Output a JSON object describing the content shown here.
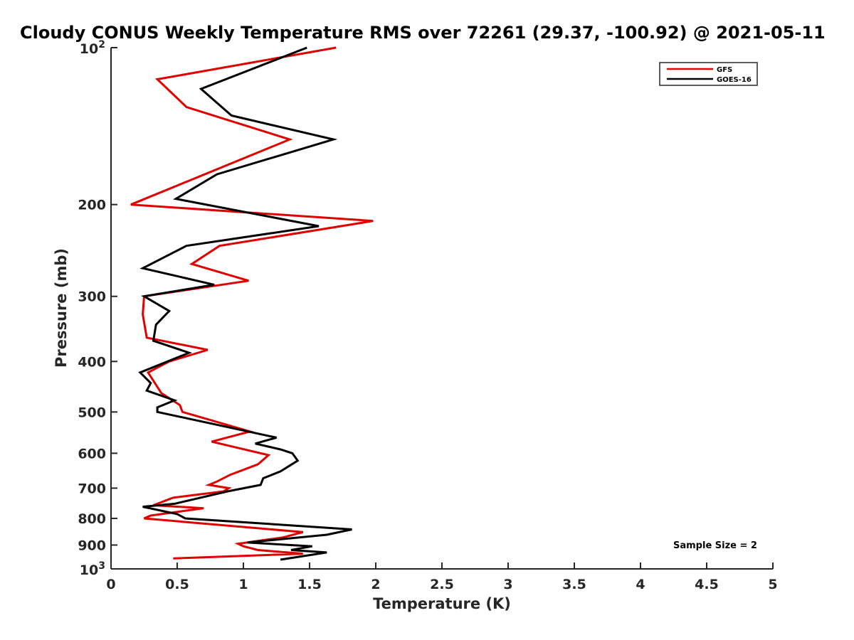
{
  "chart_data": {
    "type": "line",
    "title": "Cloudy CONUS Weekly Temperature RMS over 72261 (29.37, -100.92) @ 2021-05-11",
    "xlabel": "Temperature (K)",
    "ylabel": "Pressure (mb)",
    "xlim": [
      0,
      5
    ],
    "ylim": [
      100,
      1000
    ],
    "y_scale": "log",
    "y_reversed": true,
    "x_ticks": [
      "0",
      "0.5",
      "1",
      "1.5",
      "2",
      "2.5",
      "3",
      "3.5",
      "4",
      "4.5",
      "5"
    ],
    "y_ticks": [
      {
        "value": 100,
        "base": "10",
        "exp": "2"
      },
      {
        "value": 200,
        "label": "200"
      },
      {
        "value": 300,
        "label": "300"
      },
      {
        "value": 400,
        "label": "400"
      },
      {
        "value": 500,
        "label": "500"
      },
      {
        "value": 600,
        "label": "600"
      },
      {
        "value": 700,
        "label": "700"
      },
      {
        "value": 800,
        "label": "800"
      },
      {
        "value": 900,
        "label": "900"
      },
      {
        "value": 1000,
        "base": "10",
        "exp": "3"
      }
    ],
    "grid": false,
    "legend_position": "top-right",
    "annotation": "Sample Size = 2",
    "series": [
      {
        "name": "GFS",
        "color": "#e00000",
        "points": [
          [
            1.7,
            100
          ],
          [
            0.35,
            115
          ],
          [
            0.57,
            130
          ],
          [
            1.35,
            150
          ],
          [
            0.15,
            200
          ],
          [
            1.98,
            215
          ],
          [
            0.82,
            240
          ],
          [
            0.61,
            260
          ],
          [
            1.04,
            280
          ],
          [
            0.25,
            300
          ],
          [
            0.24,
            325
          ],
          [
            0.27,
            360
          ],
          [
            0.73,
            380
          ],
          [
            0.44,
            400
          ],
          [
            0.28,
            420
          ],
          [
            0.38,
            460
          ],
          [
            0.52,
            485
          ],
          [
            0.54,
            500
          ],
          [
            1.05,
            545
          ],
          [
            0.76,
            570
          ],
          [
            1.19,
            605
          ],
          [
            1.11,
            630
          ],
          [
            0.9,
            660
          ],
          [
            0.8,
            680
          ],
          [
            0.74,
            690
          ],
          [
            0.89,
            700
          ],
          [
            0.85,
            710
          ],
          [
            0.47,
            730
          ],
          [
            0.32,
            755
          ],
          [
            0.7,
            765
          ],
          [
            0.3,
            790
          ],
          [
            0.25,
            800
          ],
          [
            1.45,
            850
          ],
          [
            1.3,
            870
          ],
          [
            0.96,
            895
          ],
          [
            1.0,
            905
          ],
          [
            1.11,
            920
          ],
          [
            1.45,
            935
          ],
          [
            0.47,
            955
          ]
        ]
      },
      {
        "name": "GOES-16",
        "color": "#000000",
        "points": [
          [
            1.48,
            100
          ],
          [
            0.68,
            120
          ],
          [
            0.91,
            135
          ],
          [
            1.68,
            150
          ],
          [
            0.8,
            175
          ],
          [
            0.49,
            195
          ],
          [
            1.57,
            220
          ],
          [
            0.57,
            240
          ],
          [
            0.24,
            265
          ],
          [
            0.78,
            285
          ],
          [
            0.25,
            300
          ],
          [
            0.44,
            320
          ],
          [
            0.34,
            340
          ],
          [
            0.32,
            365
          ],
          [
            0.59,
            385
          ],
          [
            0.22,
            420
          ],
          [
            0.3,
            440
          ],
          [
            0.27,
            455
          ],
          [
            0.48,
            475
          ],
          [
            0.35,
            490
          ],
          [
            0.35,
            500
          ],
          [
            1.25,
            560
          ],
          [
            1.09,
            575
          ],
          [
            1.28,
            590
          ],
          [
            1.37,
            600
          ],
          [
            1.41,
            620
          ],
          [
            1.28,
            650
          ],
          [
            1.15,
            670
          ],
          [
            1.13,
            690
          ],
          [
            0.88,
            710
          ],
          [
            0.48,
            750
          ],
          [
            0.24,
            760
          ],
          [
            0.5,
            785
          ],
          [
            0.56,
            800
          ],
          [
            1.82,
            840
          ],
          [
            1.63,
            860
          ],
          [
            1.03,
            890
          ],
          [
            1.52,
            905
          ],
          [
            1.36,
            920
          ],
          [
            1.63,
            930
          ],
          [
            1.28,
            960
          ]
        ]
      }
    ]
  }
}
